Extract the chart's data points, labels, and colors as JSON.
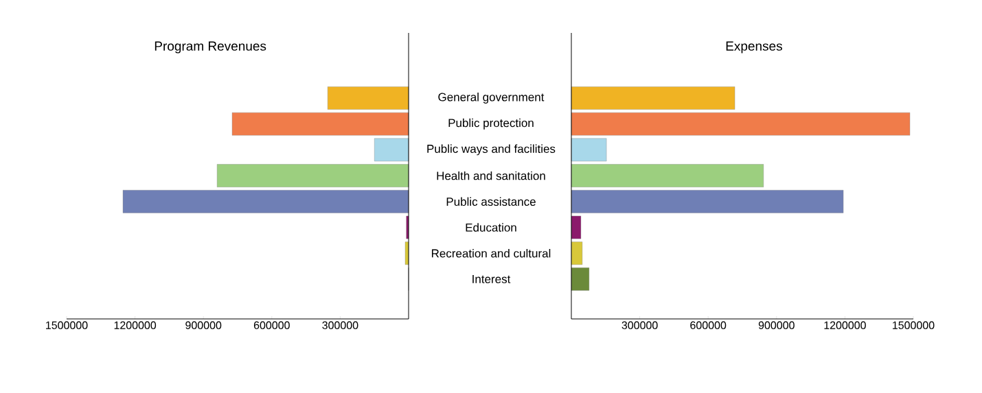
{
  "chart_data": [
    {
      "type": "bar",
      "orientation": "horizontal",
      "title": "Program Revenues",
      "categories": [
        "General government",
        "Public protection",
        "Public ways and facilities",
        "Health and sanitation",
        "Public assistance",
        "Education",
        "Recreation and cultural",
        "Interest"
      ],
      "values": [
        355000,
        774000,
        150000,
        840000,
        1253000,
        10000,
        15000,
        0
      ],
      "colors": [
        "#f0b323",
        "#f07c4a",
        "#a8d8ea",
        "#9ccf7f",
        "#6f7fb5",
        "#8b1a6b",
        "#d8c83a",
        "#6b8a3a"
      ],
      "xlim": [
        1500000,
        0
      ],
      "xticks": [
        1500000,
        1200000,
        900000,
        600000,
        300000
      ]
    },
    {
      "type": "bar",
      "orientation": "horizontal",
      "title": "Expenses",
      "categories": [
        null,
        null,
        null,
        null,
        null,
        null,
        null,
        null
      ],
      "values": [
        717000,
        1485000,
        154000,
        843000,
        1193000,
        42000,
        48000,
        78000
      ],
      "colors": [
        "#f0b323",
        "#f07c4a",
        "#a8d8ea",
        "#9ccf7f",
        "#6f7fb5",
        "#8b1a6b",
        "#d8c83a",
        "#6b8a3a"
      ],
      "xlim": [
        0,
        1500000
      ],
      "xticks": [
        300000,
        600000,
        900000,
        1200000,
        1500000
      ],
      "tick_labels": "x"
    }
  ]
}
